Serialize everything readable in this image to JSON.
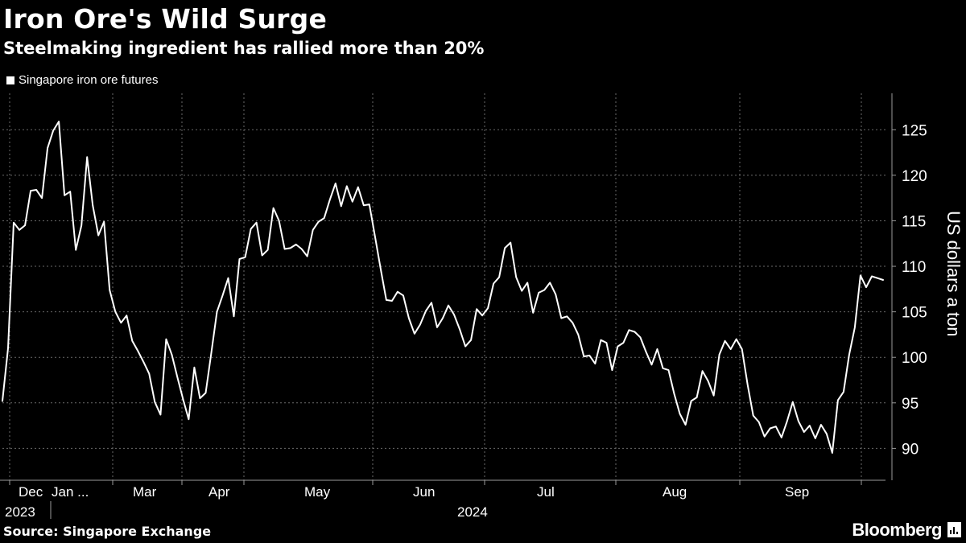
{
  "title": "Iron Ore's Wild Surge",
  "subtitle": "Steelmaking ingredient has rallied more than 20%",
  "legend": {
    "label": "Singapore iron ore futures",
    "color": "#ffffff"
  },
  "source": "Source: Singapore Exchange",
  "brand": "Bloomberg",
  "brand_icon": "bloomberg-terminal-icon",
  "chart_data": {
    "type": "line",
    "title": "Iron Ore's Wild Surge",
    "subtitle": "Steelmaking ingredient has rallied more than 20%",
    "ylabel": "US dollars a ton",
    "xlabel": "",
    "ylim": [
      86.5,
      129
    ],
    "yticks": [
      90,
      95,
      100,
      105,
      110,
      115,
      120,
      125
    ],
    "grid": true,
    "legend_position": "top-left",
    "x_month_labels": [
      "Dec",
      "Jan ...",
      "Mar",
      "Apr",
      "May",
      "Jun",
      "Jul",
      "Aug",
      "Sep"
    ],
    "x_year_labels": [
      "2023",
      "2024"
    ],
    "series": [
      {
        "name": "Singapore iron ore futures",
        "color": "#ffffff",
        "values": [
          95.2,
          101.0,
          114.8,
          114.0,
          114.5,
          118.3,
          118.4,
          117.5,
          123.0,
          124.9,
          125.9,
          117.8,
          118.2,
          111.8,
          114.5,
          122.0,
          116.7,
          113.4,
          114.9,
          107.4,
          105.0,
          103.8,
          104.6,
          101.8,
          100.7,
          99.5,
          98.2,
          95.1,
          93.7,
          102.0,
          100.3,
          97.8,
          95.4,
          93.2,
          98.9,
          95.5,
          96.1,
          100.5,
          105.0,
          106.8,
          108.7,
          104.5,
          110.8,
          111.0,
          114.1,
          114.8,
          111.2,
          111.8,
          116.4,
          115.0,
          111.9,
          112.0,
          112.4,
          111.9,
          111.1,
          114.0,
          114.9,
          115.3,
          117.3,
          119.1,
          116.6,
          118.8,
          117.1,
          118.7,
          116.7,
          116.8,
          113.3,
          109.7,
          106.3,
          106.2,
          107.2,
          106.8,
          104.3,
          102.6,
          103.6,
          105.1,
          106.0,
          103.3,
          104.3,
          105.7,
          104.7,
          103.1,
          101.2,
          101.9,
          105.3,
          104.6,
          105.4,
          108.1,
          108.8,
          112.0,
          112.6,
          108.8,
          107.3,
          108.2,
          104.9,
          107.1,
          107.4,
          108.2,
          106.9,
          104.3,
          104.5,
          103.8,
          102.5,
          100.1,
          100.2,
          99.3,
          101.9,
          101.6,
          98.6,
          101.2,
          101.6,
          103.0,
          102.8,
          102.2,
          100.6,
          99.2,
          100.9,
          98.8,
          98.6,
          96.0,
          93.8,
          92.6,
          95.2,
          95.6,
          98.5,
          97.4,
          95.8,
          100.3,
          101.8,
          100.9,
          102.0,
          100.9,
          97.0,
          93.6,
          92.9,
          91.3,
          92.2,
          92.4,
          91.2,
          93.0,
          95.1,
          93.0,
          91.8,
          92.5,
          91.1,
          92.6,
          91.6,
          89.5,
          95.3,
          96.2,
          100.3,
          103.3,
          109.0,
          107.7,
          108.9,
          108.7,
          108.5
        ]
      }
    ]
  }
}
